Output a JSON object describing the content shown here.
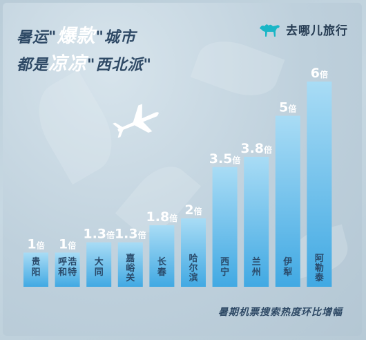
{
  "header": {
    "title_line1_a": "暑运\"",
    "title_line1_b": "爆款",
    "title_line1_c": "\"城市",
    "title_line2_a": "都是",
    "title_line2_b": "凉凉",
    "title_line2_c": "\"西北派\""
  },
  "brand": {
    "name": "去哪儿旅行",
    "icon": "camel-icon",
    "color": "#1ab6c6"
  },
  "colors": {
    "bar_dark": "#41a9e3",
    "bar_light": "#a9dcf5",
    "value_text": "#ffffff",
    "label_text": "#2a4a6a"
  },
  "chart_data": {
    "type": "bar",
    "title": "",
    "xlabel": "暑期机票搜索热度环比增幅",
    "ylabel": "",
    "categories": [
      "贵阳",
      "呼和浩特",
      "大同",
      "嘉峪关",
      "长春",
      "哈尔滨",
      "西宁",
      "兰州",
      "伊犁",
      "阿勒泰"
    ],
    "values": [
      1,
      1,
      1.3,
      1.3,
      1.8,
      2,
      3.5,
      3.8,
      5,
      6
    ],
    "value_labels": [
      "1",
      "1",
      "1.3",
      "1.3",
      "1.8",
      "2",
      "3.5",
      "3.8",
      "5",
      "6"
    ],
    "unit": "倍",
    "ylim": [
      0,
      6
    ]
  }
}
